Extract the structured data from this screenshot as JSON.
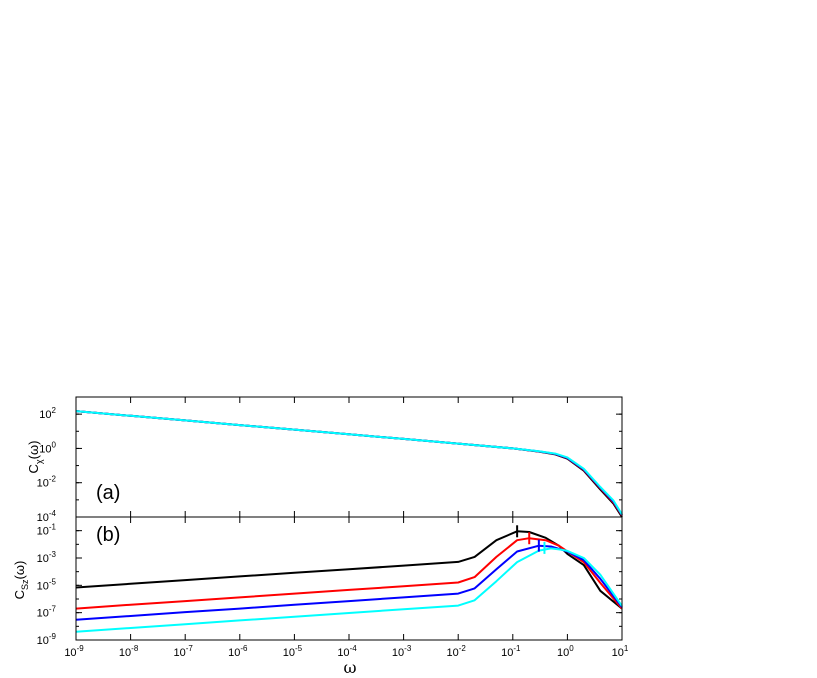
{
  "chart_data": [
    {
      "type": "line",
      "panel": "(a)",
      "ylabel": {
        "main": "C",
        "sub": "χ",
        "arg": "(ω)"
      },
      "xscale": "log",
      "yscale": "log",
      "xlim": [
        1e-09,
        10
      ],
      "ylim": [
        0.0001,
        1000
      ],
      "yticks": [
        {
          "base": "10",
          "exp": "2"
        },
        {
          "base": "10",
          "exp": "0"
        },
        {
          "base": "10",
          "exp": "-2"
        },
        {
          "base": "10",
          "exp": "-4"
        }
      ],
      "series": [
        {
          "color": "#000000",
          "x": [
            1e-09,
            1e-08,
            1e-07,
            1e-06,
            1e-05,
            0.0001,
            0.001,
            0.01,
            0.1,
            0.3,
            0.6,
            1,
            2,
            4,
            7,
            10
          ],
          "y": [
            150,
            80,
            43,
            23,
            12.5,
            6.7,
            3.6,
            1.9,
            1.0,
            0.65,
            0.45,
            0.25,
            0.05,
            0.004,
            0.0006,
            0.0001
          ]
        },
        {
          "color": "#ff0000",
          "x": [
            1e-09,
            1e-08,
            1e-07,
            1e-06,
            1e-05,
            0.0001,
            0.001,
            0.01,
            0.1,
            0.3,
            0.6,
            1,
            2,
            4,
            7,
            10
          ],
          "y": [
            150,
            80,
            43,
            23,
            12.5,
            6.7,
            3.6,
            1.9,
            1.0,
            0.66,
            0.47,
            0.27,
            0.055,
            0.0048,
            0.0007,
            0.00012
          ]
        },
        {
          "color": "#0000ff",
          "x": [
            1e-09,
            1e-08,
            1e-07,
            1e-06,
            1e-05,
            0.0001,
            0.001,
            0.01,
            0.1,
            0.3,
            0.6,
            1,
            2,
            4,
            7,
            10
          ],
          "y": [
            150,
            80,
            43,
            23,
            12.5,
            6.7,
            3.6,
            1.9,
            1.0,
            0.67,
            0.48,
            0.28,
            0.06,
            0.0052,
            0.0008,
            0.00013
          ]
        },
        {
          "color": "#00ffff",
          "x": [
            1e-09,
            1e-08,
            1e-07,
            1e-06,
            1e-05,
            0.0001,
            0.001,
            0.01,
            0.1,
            0.3,
            0.6,
            1,
            2,
            4,
            7,
            10
          ],
          "y": [
            150,
            80,
            43,
            23,
            12.5,
            6.7,
            3.6,
            1.9,
            1.0,
            0.68,
            0.5,
            0.3,
            0.065,
            0.0056,
            0.0009,
            0.00014
          ]
        }
      ]
    },
    {
      "type": "line",
      "panel": "(b)",
      "ylabel": {
        "main": "C",
        "sub": "Sz",
        "arg": "(ω)"
      },
      "xlabel": "ω",
      "xscale": "log",
      "yscale": "log",
      "xlim": [
        1e-09,
        10
      ],
      "ylim": [
        1e-09,
        1
      ],
      "yticks": [
        {
          "base": "10",
          "exp": "-1"
        },
        {
          "base": "10",
          "exp": "-3"
        },
        {
          "base": "10",
          "exp": "-5"
        },
        {
          "base": "10",
          "exp": "-7"
        },
        {
          "base": "10",
          "exp": "-9"
        }
      ],
      "xticks": [
        {
          "base": "10",
          "exp": "-9"
        },
        {
          "base": "10",
          "exp": "-8"
        },
        {
          "base": "10",
          "exp": "-7"
        },
        {
          "base": "10",
          "exp": "-6"
        },
        {
          "base": "10",
          "exp": "-5"
        },
        {
          "base": "10",
          "exp": "-4"
        },
        {
          "base": "10",
          "exp": "-3"
        },
        {
          "base": "10",
          "exp": "-2"
        },
        {
          "base": "10",
          "exp": "-1"
        },
        {
          "base": "10",
          "exp": "0"
        },
        {
          "base": "10",
          "exp": "1"
        }
      ],
      "series": [
        {
          "color": "#000000",
          "x": [
            1e-09,
            1e-08,
            1e-07,
            1e-06,
            1e-05,
            0.0001,
            0.001,
            0.01,
            0.02,
            0.05,
            0.12,
            0.2,
            0.4,
            0.7,
            1,
            2,
            4,
            10
          ],
          "y": [
            7e-06,
            1.3e-05,
            2.4e-05,
            4.5e-05,
            8.3e-05,
            0.00015,
            0.00028,
            0.00052,
            0.0012,
            0.02,
            0.09,
            0.08,
            0.03,
            0.008,
            0.002,
            0.0003,
            4e-06,
            2e-07
          ]
        },
        {
          "color": "#ff0000",
          "x": [
            1e-09,
            1e-08,
            1e-07,
            1e-06,
            1e-05,
            0.0001,
            0.001,
            0.01,
            0.02,
            0.05,
            0.12,
            0.2,
            0.4,
            0.7,
            1,
            2,
            4,
            10
          ],
          "y": [
            2e-07,
            3.8e-07,
            7e-07,
            1.3e-06,
            2.5e-06,
            4.6e-06,
            8.5e-06,
            1.6e-05,
            4e-05,
            0.0012,
            0.02,
            0.028,
            0.02,
            0.008,
            0.003,
            0.0005,
            1.5e-05,
            2e-07
          ]
        },
        {
          "color": "#0000ff",
          "x": [
            1e-09,
            1e-08,
            1e-07,
            1e-06,
            1e-05,
            0.0001,
            0.001,
            0.01,
            0.02,
            0.05,
            0.12,
            0.3,
            0.5,
            0.8,
            1,
            2,
            4,
            10
          ],
          "y": [
            3e-08,
            5.7e-08,
            1.1e-07,
            2e-07,
            3.8e-07,
            7e-07,
            1.3e-06,
            2.5e-06,
            6e-06,
            0.00015,
            0.003,
            0.008,
            0.007,
            0.004,
            0.003,
            0.0007,
            3e-05,
            2.5e-07
          ]
        },
        {
          "color": "#00ffff",
          "x": [
            1e-09,
            1e-08,
            1e-07,
            1e-06,
            1e-05,
            0.0001,
            0.001,
            0.01,
            0.02,
            0.05,
            0.12,
            0.3,
            0.5,
            0.8,
            1,
            2,
            4,
            10
          ],
          "y": [
            4e-09,
            7.5e-09,
            1.4e-08,
            2.7e-08,
            5e-08,
            9.5e-08,
            1.8e-07,
            3.3e-07,
            8e-07,
            2e-05,
            0.0005,
            0.0035,
            0.005,
            0.004,
            0.0033,
            0.001,
            6e-05,
            3e-07
          ]
        }
      ],
      "peak_markers": [
        {
          "color": "#000000",
          "x": 0.12,
          "y": 0.09
        },
        {
          "color": "#ff0000",
          "x": 0.2,
          "y": 0.028
        },
        {
          "color": "#0000ff",
          "x": 0.3,
          "y": 0.008
        },
        {
          "color": "#00ffff",
          "x": 0.38,
          "y": 0.0055
        }
      ]
    }
  ]
}
